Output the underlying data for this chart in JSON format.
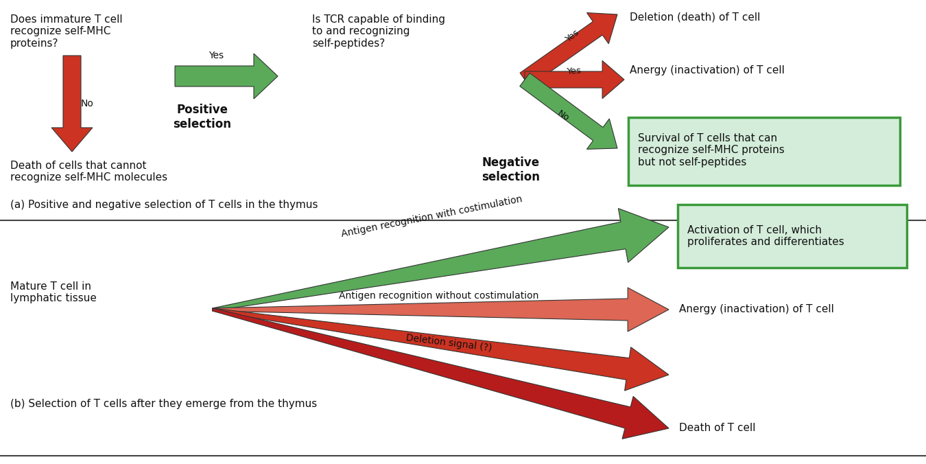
{
  "bg_color": "#ffffff",
  "green_arrow": "#5aaa5a",
  "green_light_fill": "#d4edda",
  "green_border": "#3a9a3a",
  "red_arrow": "#cc3322",
  "red_mid": "#dd6655",
  "text_color": "#111111",
  "panel_a_label": "(a) Positive and negative selection of T cells in the thymus",
  "panel_b_label": "(b) Selection of T cells after they emerge from the thymus",
  "title_a": "Does immature T cell\nrecognize self-MHC\nproteins?",
  "no_label_a": "No",
  "yes_label_a": "Yes",
  "death_a_label": "Death of cells that cannot\nrecognize self-MHC molecules",
  "pos_sel_label": "Positive\nselection",
  "tcr_question": "Is TCR capable of binding\nto and recognizing\nself-peptides?",
  "neg_sel_label": "Negative\nselection",
  "deletion_label": "Deletion (death) of T cell",
  "anergy_label": "Anergy (inactivation) of T cell",
  "survival_label": "Survival of T cells that can\nrecognize self-MHC proteins\nbut not self-peptides",
  "yes_upper": "Yes",
  "yes_lower": "Yes",
  "no_lower": "No",
  "mature_label": "Mature T cell in\nlymphatic tissue",
  "arrow1_label": "Antigen recognition with costimulation",
  "arrow2_label": "Antigen recognition without costimulation",
  "arrow3_label": "Deletion signal (?)",
  "activation_label": "Activation of T cell, which\nproliferates and differentiates",
  "anergy_b_label": "Anergy (inactivation) of T cell",
  "death_b_label": "Death of T cell"
}
